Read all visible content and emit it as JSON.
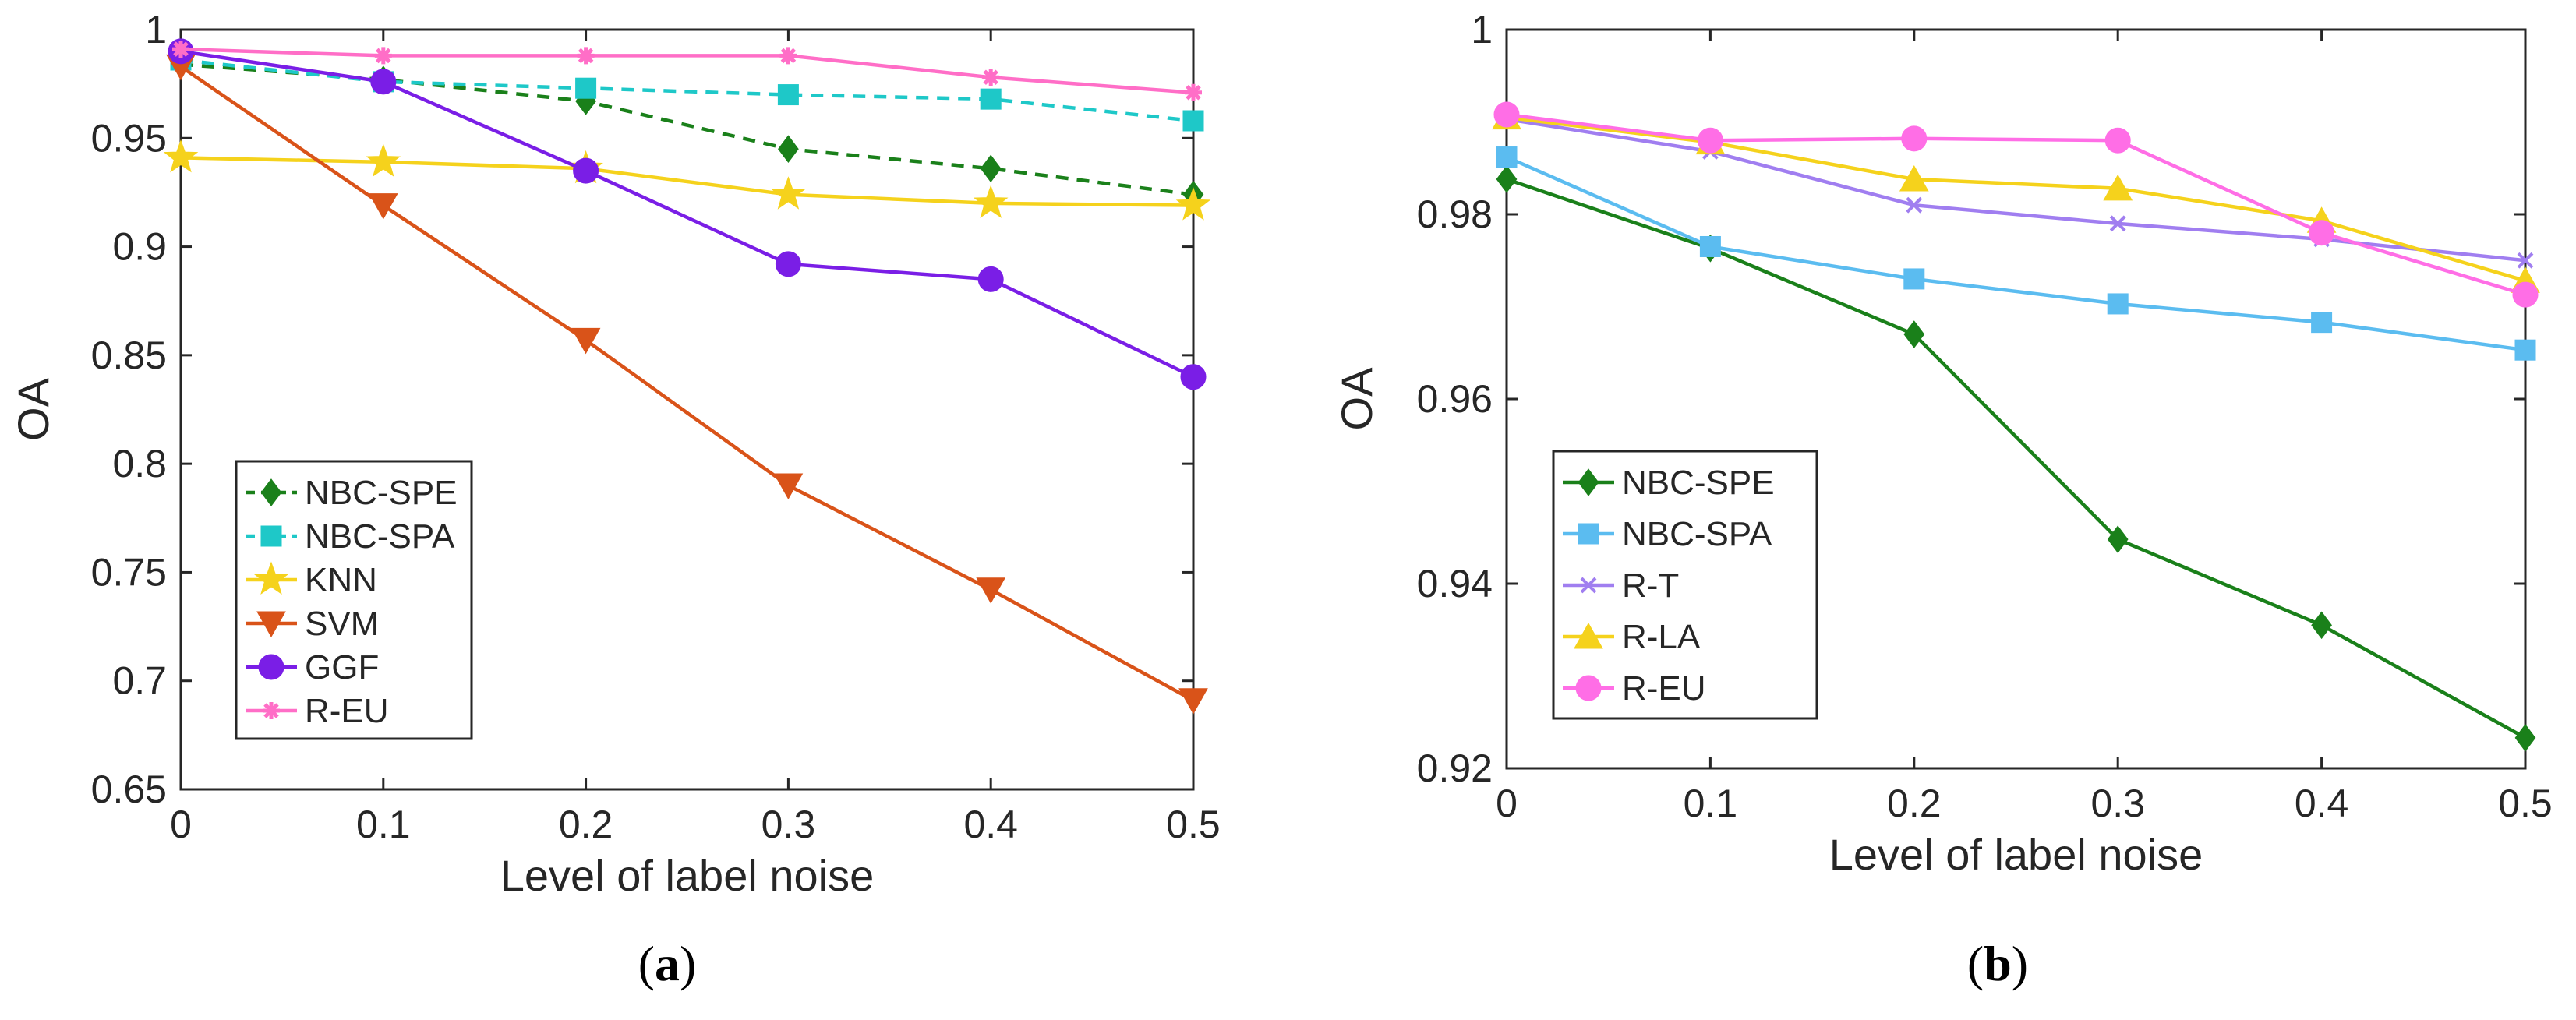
{
  "chart_data": [
    {
      "type": "line",
      "caption": "a",
      "xlabel": "Level of label noise",
      "ylabel": "OA",
      "x": [
        0,
        0.1,
        0.2,
        0.3,
        0.4,
        0.5
      ],
      "xlim": [
        0,
        0.5
      ],
      "ylim": [
        0.65,
        1
      ],
      "xticks": [
        "0",
        "0.1",
        "0.2",
        "0.3",
        "0.4",
        "0.5"
      ],
      "yticks": [
        "0.65",
        "0.7",
        "0.75",
        "0.8",
        "0.85",
        "0.9",
        "0.95",
        "1"
      ],
      "legend_position": "bottom-left",
      "series": [
        {
          "name": "NBC-SPE",
          "color": "#1a801a",
          "dash": "dashed",
          "marker": "diamond",
          "values": [
            0.984,
            0.977,
            0.967,
            0.945,
            0.936,
            0.924
          ]
        },
        {
          "name": "NBC-SPA",
          "color": "#1ec8c8",
          "dash": "dashed",
          "marker": "square",
          "values": [
            0.986,
            0.976,
            0.973,
            0.97,
            0.968,
            0.958
          ]
        },
        {
          "name": "KNN",
          "color": "#f5d21c",
          "dash": "solid",
          "marker": "star",
          "values": [
            0.941,
            0.939,
            0.936,
            0.924,
            0.92,
            0.919
          ]
        },
        {
          "name": "SVM",
          "color": "#d95319",
          "dash": "solid",
          "marker": "triangle-down",
          "values": [
            0.983,
            0.919,
            0.857,
            0.79,
            0.742,
            0.691
          ]
        },
        {
          "name": "GGF",
          "color": "#7a1ee6",
          "dash": "solid",
          "marker": "circle",
          "values": [
            0.99,
            0.976,
            0.935,
            0.892,
            0.885,
            0.84
          ]
        },
        {
          "name": "R-EU",
          "color": "#ff6ec7",
          "dash": "solid",
          "marker": "asterisk",
          "values": [
            0.991,
            0.988,
            0.988,
            0.988,
            0.978,
            0.971
          ]
        }
      ]
    },
    {
      "type": "line",
      "caption": "b",
      "xlabel": "Level of label noise",
      "ylabel": "OA",
      "x": [
        0,
        0.1,
        0.2,
        0.3,
        0.4,
        0.5
      ],
      "xlim": [
        0,
        0.5
      ],
      "ylim": [
        0.92,
        1
      ],
      "xticks": [
        "0",
        "0.1",
        "0.2",
        "0.3",
        "0.4",
        "0.5"
      ],
      "yticks": [
        "0.92",
        "0.94",
        "0.96",
        "0.98",
        "1"
      ],
      "legend_position": "bottom-left",
      "series": [
        {
          "name": "NBC-SPE",
          "color": "#1a801a",
          "dash": "solid",
          "marker": "diamond",
          "values": [
            0.9838,
            0.9763,
            0.967,
            0.9448,
            0.9355,
            0.9233
          ]
        },
        {
          "name": "NBC-SPA",
          "color": "#5bbcf0",
          "dash": "solid",
          "marker": "square",
          "values": [
            0.9862,
            0.9765,
            0.973,
            0.9703,
            0.9683,
            0.9653
          ]
        },
        {
          "name": "R-T",
          "color": "#a07ef0",
          "dash": "solid",
          "marker": "x",
          "values": [
            0.9903,
            0.9868,
            0.981,
            0.979,
            0.9773,
            0.975
          ]
        },
        {
          "name": "R-LA",
          "color": "#f5d21c",
          "dash": "solid",
          "marker": "triangle-up",
          "values": [
            0.9905,
            0.9878,
            0.9838,
            0.9828,
            0.9793,
            0.9728
          ]
        },
        {
          "name": "R-EU",
          "color": "#ff6ee6",
          "dash": "solid",
          "marker": "circle",
          "values": [
            0.9908,
            0.988,
            0.9882,
            0.988,
            0.978,
            0.9713
          ]
        }
      ]
    }
  ]
}
